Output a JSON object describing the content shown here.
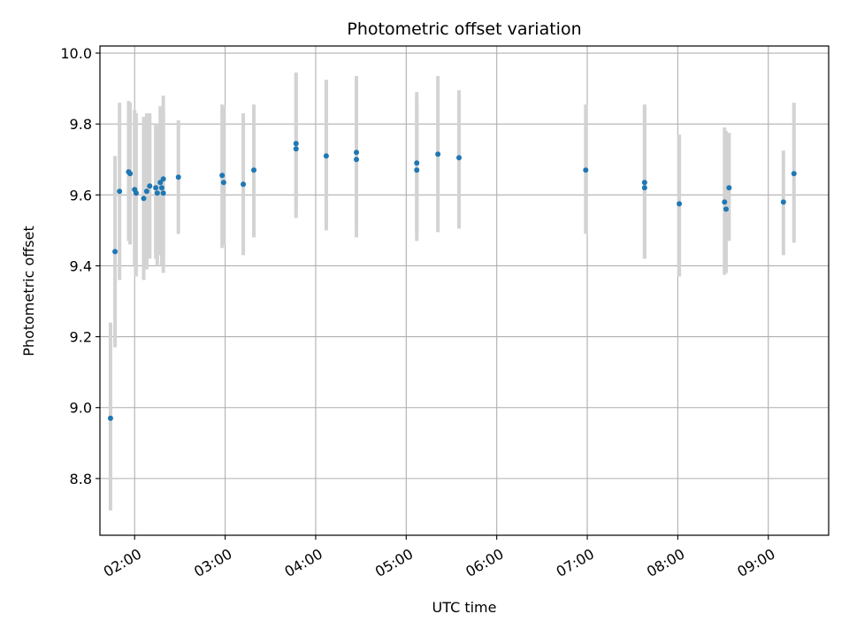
{
  "chart_data": {
    "type": "scatter",
    "title": "Photometric offset variation",
    "xlabel": "UTC time",
    "ylabel": "Photometric offset",
    "grid": true,
    "x_ticks": [
      "02:00",
      "03:00",
      "04:00",
      "05:00",
      "06:00",
      "07:00",
      "08:00",
      "09:00"
    ],
    "y_ticks": [
      "8.8",
      "9.0",
      "9.2",
      "9.4",
      "9.6",
      "9.8",
      "10.0"
    ],
    "xlim": [
      "01:37",
      "09:40"
    ],
    "ylim": [
      8.64,
      10.02
    ],
    "colors": {
      "point": "#1f77b4",
      "errorbar": "#d3d3d3",
      "grid": "#b0b0b0",
      "axis": "#000000"
    },
    "points": [
      {
        "x": "01:44",
        "y": 8.97,
        "yerr_low": 8.71,
        "yerr_high": 9.24
      },
      {
        "x": "01:47",
        "y": 9.44,
        "yerr_low": 9.17,
        "yerr_high": 9.71
      },
      {
        "x": "01:50",
        "y": 9.61,
        "yerr_low": 9.36,
        "yerr_high": 9.86
      },
      {
        "x": "01:56",
        "y": 9.665,
        "yerr_low": 9.47,
        "yerr_high": 9.865
      },
      {
        "x": "01:57",
        "y": 9.66,
        "yerr_low": 9.46,
        "yerr_high": 9.86
      },
      {
        "x": "02:00",
        "y": 9.615,
        "yerr_low": 9.4,
        "yerr_high": 9.84
      },
      {
        "x": "02:01",
        "y": 9.605,
        "yerr_low": 9.37,
        "yerr_high": 9.83
      },
      {
        "x": "02:06",
        "y": 9.59,
        "yerr_low": 9.36,
        "yerr_high": 9.82
      },
      {
        "x": "02:08",
        "y": 9.61,
        "yerr_low": 9.39,
        "yerr_high": 9.83
      },
      {
        "x": "02:10",
        "y": 9.625,
        "yerr_low": 9.42,
        "yerr_high": 9.83
      },
      {
        "x": "02:14",
        "y": 9.62,
        "yerr_low": 9.42,
        "yerr_high": 9.8
      },
      {
        "x": "02:15",
        "y": 9.605,
        "yerr_low": 9.4,
        "yerr_high": 9.8
      },
      {
        "x": "02:17",
        "y": 9.635,
        "yerr_low": 9.43,
        "yerr_high": 9.85
      },
      {
        "x": "02:18",
        "y": 9.62,
        "yerr_low": 9.4,
        "yerr_high": 9.84
      },
      {
        "x": "02:19",
        "y": 9.605,
        "yerr_low": 9.38,
        "yerr_high": 9.83
      },
      {
        "x": "02:19",
        "y": 9.645,
        "yerr_low": 9.4,
        "yerr_high": 9.88
      },
      {
        "x": "02:29",
        "y": 9.65,
        "yerr_low": 9.49,
        "yerr_high": 9.81
      },
      {
        "x": "02:58",
        "y": 9.655,
        "yerr_low": 9.45,
        "yerr_high": 9.855
      },
      {
        "x": "02:59",
        "y": 9.635,
        "yerr_low": 9.46,
        "yerr_high": 9.85
      },
      {
        "x": "03:12",
        "y": 9.63,
        "yerr_low": 9.43,
        "yerr_high": 9.83
      },
      {
        "x": "03:19",
        "y": 9.67,
        "yerr_low": 9.48,
        "yerr_high": 9.855
      },
      {
        "x": "03:47",
        "y": 9.745,
        "yerr_low": 9.535,
        "yerr_high": 9.945
      },
      {
        "x": "03:47",
        "y": 9.73,
        "yerr_low": 9.55,
        "yerr_high": 9.94
      },
      {
        "x": "04:07",
        "y": 9.71,
        "yerr_low": 9.5,
        "yerr_high": 9.925
      },
      {
        "x": "04:27",
        "y": 9.72,
        "yerr_low": 9.51,
        "yerr_high": 9.935
      },
      {
        "x": "04:27",
        "y": 9.7,
        "yerr_low": 9.48,
        "yerr_high": 9.93
      },
      {
        "x": "05:07",
        "y": 9.69,
        "yerr_low": 9.47,
        "yerr_high": 9.89
      },
      {
        "x": "05:07",
        "y": 9.67,
        "yerr_low": 9.49,
        "yerr_high": 9.87
      },
      {
        "x": "05:21",
        "y": 9.715,
        "yerr_low": 9.495,
        "yerr_high": 9.935
      },
      {
        "x": "05:35",
        "y": 9.705,
        "yerr_low": 9.505,
        "yerr_high": 9.895
      },
      {
        "x": "06:59",
        "y": 9.67,
        "yerr_low": 9.49,
        "yerr_high": 9.855
      },
      {
        "x": "07:38",
        "y": 9.635,
        "yerr_low": 9.42,
        "yerr_high": 9.855
      },
      {
        "x": "07:38",
        "y": 9.62,
        "yerr_low": 9.42,
        "yerr_high": 9.85
      },
      {
        "x": "08:01",
        "y": 9.575,
        "yerr_low": 9.37,
        "yerr_high": 9.77
      },
      {
        "x": "08:31",
        "y": 9.58,
        "yerr_low": 9.375,
        "yerr_high": 9.79
      },
      {
        "x": "08:32",
        "y": 9.56,
        "yerr_low": 9.38,
        "yerr_high": 9.78
      },
      {
        "x": "08:34",
        "y": 9.62,
        "yerr_low": 9.47,
        "yerr_high": 9.775
      },
      {
        "x": "09:10",
        "y": 9.58,
        "yerr_low": 9.43,
        "yerr_high": 9.725
      },
      {
        "x": "09:17",
        "y": 9.66,
        "yerr_low": 9.465,
        "yerr_high": 9.86
      }
    ]
  }
}
